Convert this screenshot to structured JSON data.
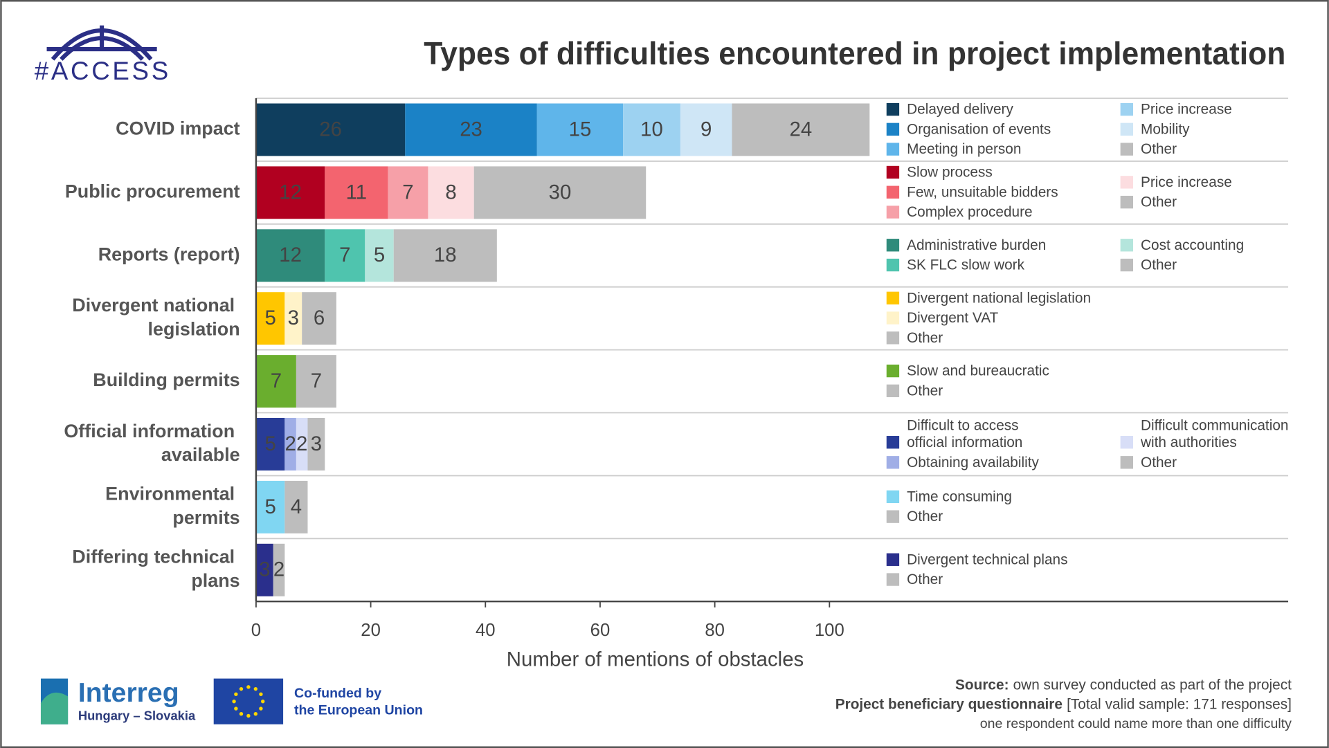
{
  "chart_data": {
    "type": "stacked-bar-groups",
    "title": "Types of difficulties encountered in project implementation",
    "xlabel": "Number of mentions of obstacles",
    "xlim": [
      0,
      180
    ],
    "xticks": [
      0,
      20,
      40,
      60,
      80,
      100
    ],
    "groups": [
      {
        "label": "COVID impact",
        "segments": [
          {
            "name": "Delayed delivery",
            "color": "#0f3e5e",
            "value": 26
          },
          {
            "name": "Organisation of events",
            "color": "#1b82c6",
            "value": 23
          },
          {
            "name": "Meeting in person",
            "color": "#5fb5ea",
            "value": 15
          },
          {
            "name": "Price increase",
            "color": "#9dd2f1",
            "value": 10
          },
          {
            "name": "Mobility",
            "color": "#cfe6f6",
            "value": 9
          },
          {
            "name": "Other",
            "color": "#bdbdbd",
            "value": 24
          }
        ]
      },
      {
        "label": "Public procurement",
        "segments": [
          {
            "name": "Slow process",
            "color": "#b10020",
            "value": 12
          },
          {
            "name": "Few, unsuitable bidders",
            "color": "#f3646f",
            "value": 11
          },
          {
            "name": "Complex procedure",
            "color": "#f6a0a8",
            "value": 7
          },
          {
            "name": "Price increase",
            "color": "#fcdde0",
            "value": 8
          },
          {
            "name": "Other",
            "color": "#bdbdbd",
            "value": 30
          }
        ]
      },
      {
        "label": "Reports (report)",
        "segments": [
          {
            "name": "Administrative burden",
            "color": "#2f8b7b",
            "value": 12
          },
          {
            "name": "SK FLC slow work",
            "color": "#4fc4ae",
            "value": 7
          },
          {
            "name": "Cost accounting",
            "color": "#b4e5dc",
            "value": 5
          },
          {
            "name": "Other",
            "color": "#bdbdbd",
            "value": 18
          }
        ]
      },
      {
        "label": "Divergent national legislation",
        "segments": [
          {
            "name": "Divergent national legislation",
            "color": "#ffc600",
            "value": 5
          },
          {
            "name": "Divergent VAT",
            "color": "#fff3c9",
            "value": 3
          },
          {
            "name": "Other",
            "color": "#bdbdbd",
            "value": 6
          }
        ]
      },
      {
        "label": "Building permits",
        "segments": [
          {
            "name": "Slow and bureaucratic",
            "color": "#6aae2e",
            "value": 7
          },
          {
            "name": "Other",
            "color": "#bdbdbd",
            "value": 7
          }
        ]
      },
      {
        "label": "Official information available",
        "segments": [
          {
            "name": "Difficult to access official information",
            "color": "#283c97",
            "value": 5
          },
          {
            "name": "Obtaining availability",
            "color": "#a0aee6",
            "value": 2
          },
          {
            "name": "Difficult communication with authorities",
            "color": "#d8def7",
            "value": 2
          },
          {
            "name": "Other",
            "color": "#bdbdbd",
            "value": 3
          }
        ]
      },
      {
        "label": "Environmental permits",
        "segments": [
          {
            "name": "Time consuming",
            "color": "#80d6f2",
            "value": 5
          },
          {
            "name": "Other",
            "color": "#bdbdbd",
            "value": 4
          }
        ]
      },
      {
        "label": "Differing technical plans",
        "segments": [
          {
            "name": "Divergent technical plans",
            "color": "#2a2f8c",
            "value": 3
          },
          {
            "name": "Other",
            "color": "#bdbdbd",
            "value": 2
          }
        ]
      }
    ],
    "source": {
      "label": "Source:",
      "text": "own survey conducted as part of the project"
    },
    "sample": {
      "label": "Project beneficiary questionnaire",
      "text": "[Total valid sample: 171 responses]"
    },
    "note": "one respondent could name more than one difficulty"
  },
  "logos": {
    "access": "#ACCESS",
    "interreg": "Interreg",
    "region": "Hungary – Slovakia",
    "eu_line1": "Co-funded by",
    "eu_line2": "the European Union"
  }
}
